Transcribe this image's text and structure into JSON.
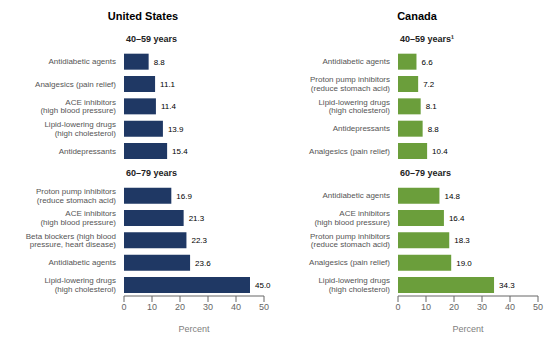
{
  "chart_data": [
    {
      "type": "bar",
      "orientation": "horizontal",
      "data_labels": true,
      "title": "United States",
      "xlabel": "Percent",
      "color": "#1f3864",
      "xlim": [
        0,
        50
      ],
      "xticks": [
        0,
        10,
        20,
        30,
        40,
        50
      ],
      "groups": [
        {
          "name": "40–59 years",
          "categories": [
            "Antidiabetic agents",
            "Analgesics (pain relief)",
            "ACE inhibitors\n(high blood pressure)",
            "Lipid-lowering drugs\n(high cholesterol)",
            "Antidepressants"
          ],
          "values": [
            8.8,
            11.1,
            11.4,
            13.9,
            15.4
          ],
          "value_labels": [
            "8.8",
            "11.1",
            "11.4",
            "13.9",
            "15.4"
          ]
        },
        {
          "name": "60–79 years",
          "categories": [
            "Proton pump inhibitors\n(reduce stomach acid)",
            "ACE inhibitors\n(high blood pressure)",
            "Beta blockers (high blood\npressure, heart disease)",
            "Antidiabetic agents",
            "Lipid-lowering drugs\n(high cholesterol)"
          ],
          "values": [
            16.9,
            21.3,
            22.3,
            23.6,
            45.0
          ],
          "value_labels": [
            "16.9",
            "21.3",
            "22.3",
            "23.6",
            "45.0"
          ]
        }
      ]
    },
    {
      "type": "bar",
      "orientation": "horizontal",
      "data_labels": true,
      "title": "Canada",
      "xlabel": "Percent",
      "color": "#6b9e3b",
      "xlim": [
        0,
        50
      ],
      "xticks": [
        0,
        10,
        20,
        30,
        40,
        50
      ],
      "groups": [
        {
          "name": "40–59 years¹",
          "categories": [
            "Antidiabetic agents",
            "Proton pump inhibitors\n(reduce stomach acid)",
            "Lipid-lowering drugs\n(high cholesterol)",
            "Antidepressants",
            "Analgesics (pain relief)"
          ],
          "values": [
            6.6,
            7.2,
            8.1,
            8.8,
            10.4
          ],
          "value_labels": [
            "6.6",
            "7.2",
            "8.1",
            "8.8",
            "10.4"
          ]
        },
        {
          "name": "60–79 years",
          "categories": [
            "Antidiabetic agents",
            "ACE inhibitors\n(high blood pressure)",
            "Proton pump inhibitors\n(reduce stomach acid)",
            "Analgesics (pain relief)",
            "Lipid-lowering drugs\n(high cholesterol)"
          ],
          "values": [
            14.8,
            16.4,
            18.3,
            19.0,
            34.3
          ],
          "value_labels": [
            "14.8",
            "16.4",
            "18.3",
            "19.0",
            "34.3"
          ]
        }
      ]
    }
  ]
}
